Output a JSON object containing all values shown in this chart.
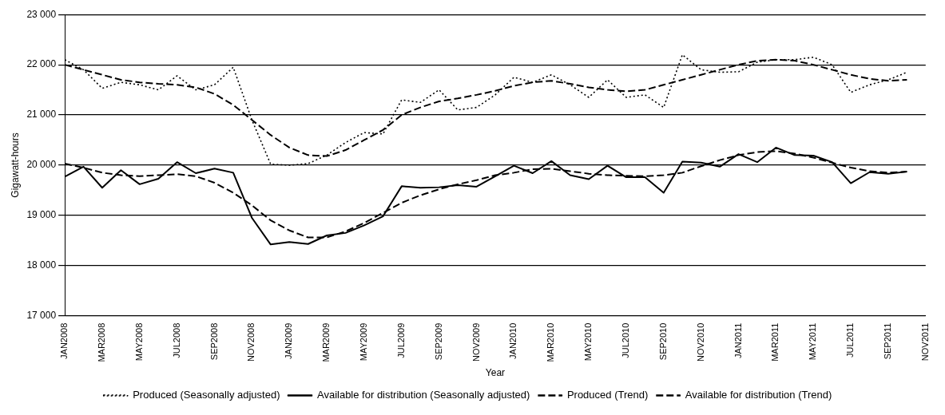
{
  "chart_data": {
    "type": "line",
    "xlabel": "Year",
    "ylabel": "Gigawatt-hours",
    "categories": [
      "JAN2008",
      null,
      "MAR2008",
      null,
      "MAY2008",
      null,
      "JUL2008",
      null,
      "SEP2008",
      null,
      "NOV2008",
      null,
      "JAN2009",
      null,
      "MAR2009",
      null,
      "MAY2009",
      null,
      "JUL2009",
      null,
      "SEP2009",
      null,
      "NOV2009",
      null,
      "JAN2010",
      null,
      "MAR2010",
      null,
      "MAY2010",
      null,
      "JUL2010",
      null,
      "SEP2010",
      null,
      "NOV2010",
      null,
      "JAN2011",
      null,
      "MAR2011",
      null,
      "MAY2011",
      null,
      "JUL2011",
      null,
      "SEP2011",
      null,
      "NOV2011"
    ],
    "series": [
      {
        "name": "Produced (Seasonally adjusted)",
        "color": "#000000",
        "line_style": "dotted",
        "values": [
          22100,
          21900,
          21530,
          21650,
          21600,
          21500,
          21780,
          21500,
          21600,
          21950,
          20900,
          20020,
          20000,
          20030,
          20200,
          20450,
          20650,
          20620,
          21300,
          21250,
          21500,
          21100,
          21150,
          21400,
          21750,
          21650,
          21800,
          21600,
          21350,
          21700,
          21350,
          21400,
          21150,
          22200,
          21900,
          21850,
          21860,
          22050,
          22100,
          22100,
          22150,
          22000,
          21450,
          21600,
          21700,
          21850,
          null
        ]
      },
      {
        "name": "Available for distribution (Seasonally adjusted)",
        "color": "#000000",
        "line_style": "solid",
        "values": [
          19770,
          19970,
          19550,
          19900,
          19620,
          19730,
          20060,
          19840,
          19930,
          19850,
          18950,
          18420,
          18470,
          18430,
          18600,
          18650,
          18800,
          18980,
          19580,
          19550,
          19560,
          19600,
          19570,
          19780,
          19990,
          19840,
          20080,
          19800,
          19720,
          19990,
          19760,
          19760,
          19450,
          20070,
          20050,
          19970,
          20220,
          20060,
          20350,
          20200,
          20190,
          20060,
          19640,
          19860,
          19830,
          19870,
          null
        ]
      },
      {
        "name": "Produced (Trend)",
        "color": "#000000",
        "line_style": "dashed",
        "values": [
          22000,
          21900,
          21800,
          21700,
          21650,
          21620,
          21600,
          21550,
          21420,
          21200,
          20900,
          20600,
          20350,
          20200,
          20180,
          20300,
          20500,
          20700,
          21000,
          21150,
          21270,
          21330,
          21400,
          21480,
          21580,
          21650,
          21680,
          21620,
          21550,
          21500,
          21470,
          21500,
          21600,
          21700,
          21800,
          21900,
          22000,
          22080,
          22100,
          22080,
          22000,
          21900,
          21800,
          21720,
          21680,
          21700,
          null
        ]
      },
      {
        "name": "Available for distribution (Trend)",
        "color": "#000000",
        "line_style": "dashed",
        "values": [
          20030,
          19950,
          19850,
          19800,
          19780,
          19800,
          19820,
          19780,
          19650,
          19450,
          19200,
          18900,
          18700,
          18560,
          18560,
          18680,
          18850,
          19050,
          19250,
          19400,
          19520,
          19620,
          19700,
          19800,
          19850,
          19920,
          19930,
          19880,
          19830,
          19800,
          19790,
          19780,
          19800,
          19850,
          19980,
          20100,
          20200,
          20260,
          20280,
          20230,
          20150,
          20050,
          19950,
          19880,
          19850,
          19870,
          null
        ]
      }
    ],
    "ylim": [
      17000,
      23000
    ],
    "yticks": [
      {
        "value": 17000,
        "label": "17 000"
      },
      {
        "value": 18000,
        "label": "18 000"
      },
      {
        "value": 19000,
        "label": "19 000"
      },
      {
        "value": 20000,
        "label": "20 000"
      },
      {
        "value": 21000,
        "label": "21 000"
      },
      {
        "value": 22000,
        "label": "22 000"
      },
      {
        "value": 23000,
        "label": "23 000"
      }
    ],
    "grid": "y",
    "legend": "bottom",
    "marker": "none"
  }
}
